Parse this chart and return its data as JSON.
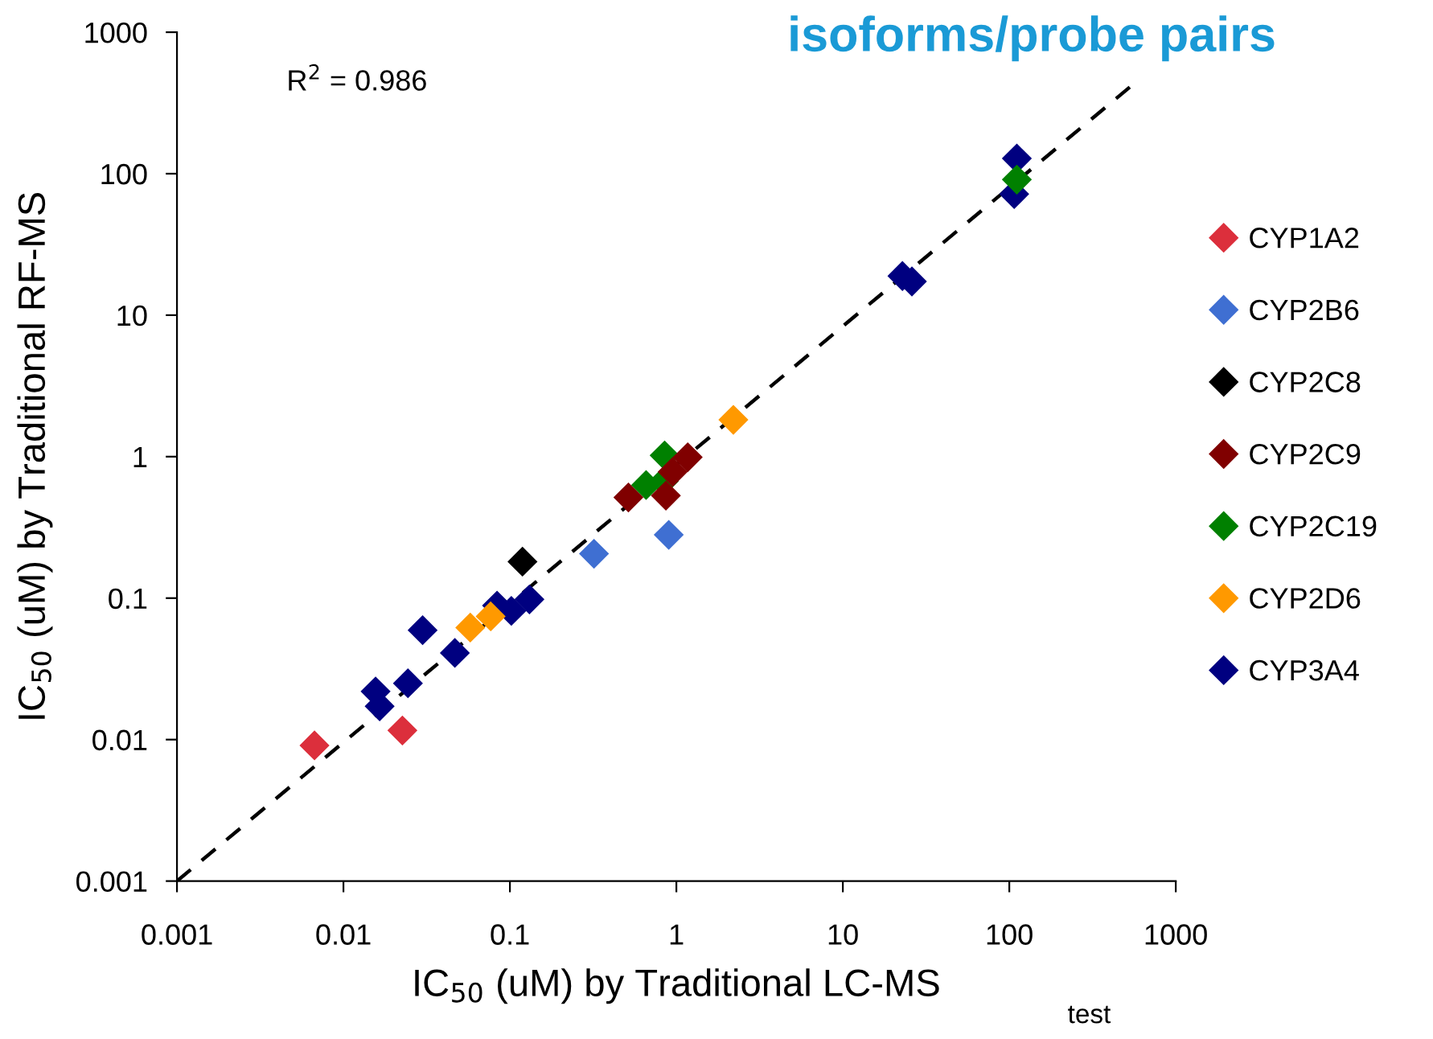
{
  "chart_data": {
    "type": "scatter",
    "title": "isoforms/probe pairs",
    "xlabel": "IC$_{50}$ (uM) by Traditional LC-MS",
    "ylabel": "IC$_{50}$ (uM) by Traditional RF-MS",
    "annotations": [
      "R$^{2}$ = 0.986",
      "test"
    ],
    "log": "xy",
    "xlim": [
      0.001,
      1000
    ],
    "ylim": [
      0.001,
      1000
    ],
    "xticks": [
      0.001,
      0.01,
      0.1,
      1,
      10,
      100,
      1000
    ],
    "yticks": [
      0.001,
      0.01,
      0.1,
      1,
      10,
      100,
      1000
    ],
    "grid": false,
    "legend": "right",
    "marker": "diamond",
    "series": [
      {
        "name": "CYP1A2",
        "color": "#dc2f3c",
        "x": [
          0.0067,
          0.0226
        ],
        "values": [
          0.0091,
          0.0116
        ]
      },
      {
        "name": "CYP2B6",
        "color": "#3f6fd2",
        "x": [
          0.32,
          0.9
        ],
        "values": [
          0.206,
          0.28
        ]
      },
      {
        "name": "CYP2C8",
        "color": "#000000",
        "x": [
          0.119
        ],
        "values": [
          0.181
        ]
      },
      {
        "name": "CYP2C9",
        "color": "#800000",
        "x": [
          0.515,
          0.865,
          0.95,
          1.17
        ],
        "values": [
          0.515,
          0.53,
          0.78,
          0.99
        ]
      },
      {
        "name": "CYP2C19",
        "color": "#008000",
        "x": [
          0.658,
          0.84,
          0.85,
          111
        ],
        "values": [
          0.63,
          0.67,
          1.02,
          90.8
        ]
      },
      {
        "name": "CYP2D6",
        "color": "#ff9900",
        "x": [
          0.0578,
          0.0766,
          2.2
        ],
        "values": [
          0.0619,
          0.0743,
          1.82
        ]
      },
      {
        "name": "CYP3A4",
        "color": "#000080",
        "x": [
          0.0156,
          0.0165,
          0.0244,
          0.0299,
          0.0467,
          0.0837,
          0.102,
          0.131,
          22.8,
          26,
          111,
          107
        ],
        "values": [
          0.0219,
          0.0172,
          0.025,
          0.0593,
          0.041,
          0.0885,
          0.0812,
          0.098,
          18.9,
          17.3,
          128,
          71.8
        ]
      },
      {
        "type": "line",
        "line_style": "dashed",
        "marker": "none",
        "color": "#000000",
        "x": [
          0.001,
          561
        ],
        "values": [
          0.001,
          433
        ]
      }
    ]
  }
}
